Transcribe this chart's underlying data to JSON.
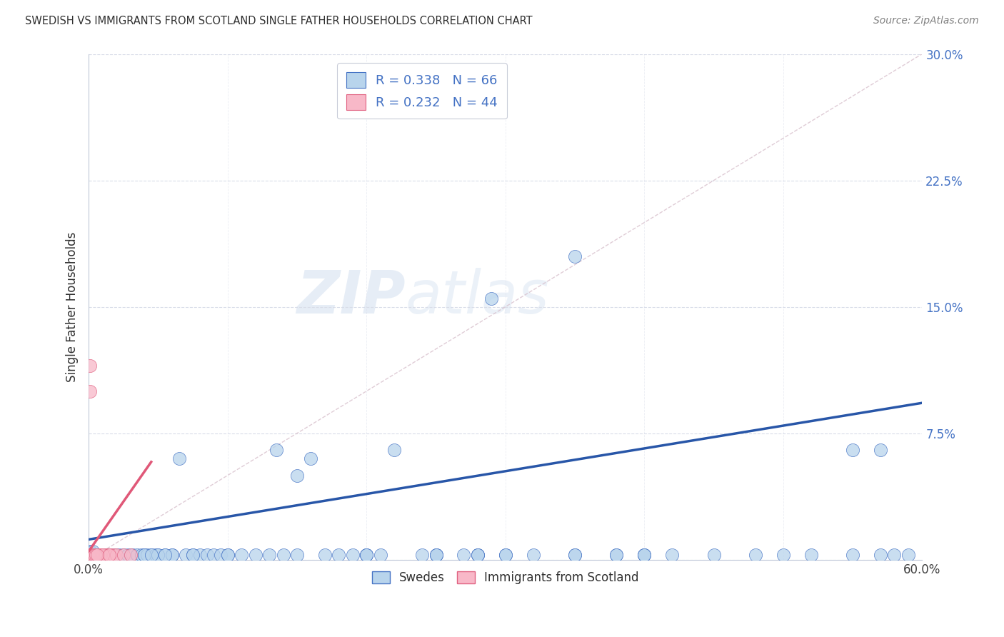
{
  "title": "SWEDISH VS IMMIGRANTS FROM SCOTLAND SINGLE FATHER HOUSEHOLDS CORRELATION CHART",
  "source": "Source: ZipAtlas.com",
  "ylabel": "Single Father Households",
  "watermark_zip": "ZIP",
  "watermark_atlas": "atlas",
  "blue_R": 0.338,
  "blue_N": 66,
  "pink_R": 0.232,
  "pink_N": 44,
  "xlim": [
    0.0,
    0.6
  ],
  "ylim": [
    0.0,
    0.3
  ],
  "blue_scatter_color": "#b8d4ec",
  "blue_scatter_edge": "#4472c4",
  "pink_scatter_color": "#f8b8c8",
  "pink_scatter_edge": "#e06080",
  "blue_line_color": "#2856a8",
  "pink_line_color": "#e05878",
  "diag_line_color": "#d8c0cc",
  "grid_color": "#d8dce8",
  "title_color": "#303030",
  "source_color": "#808080",
  "ytick_color": "#4472c4",
  "xtick_color": "#404040",
  "legend_edge_color": "#c8ccd8",
  "blue_trend_x0": 0.0,
  "blue_trend_y0": 0.012,
  "blue_trend_x1": 0.6,
  "blue_trend_y1": 0.093,
  "pink_trend_x0": 0.0,
  "pink_trend_y0": 0.005,
  "pink_trend_x1": 0.045,
  "pink_trend_y1": 0.058,
  "swedes_x": [
    0.001,
    0.002,
    0.003,
    0.004,
    0.005,
    0.006,
    0.007,
    0.008,
    0.009,
    0.01,
    0.011,
    0.012,
    0.013,
    0.014,
    0.015,
    0.016,
    0.018,
    0.02,
    0.022,
    0.025,
    0.028,
    0.03,
    0.032,
    0.035,
    0.038,
    0.04,
    0.042,
    0.045,
    0.048,
    0.05,
    0.055,
    0.06,
    0.065,
    0.07,
    0.075,
    0.08,
    0.085,
    0.09,
    0.095,
    0.1,
    0.11,
    0.12,
    0.13,
    0.135,
    0.14,
    0.15,
    0.16,
    0.17,
    0.18,
    0.19,
    0.2,
    0.21,
    0.22,
    0.24,
    0.25,
    0.27,
    0.28,
    0.3,
    0.32,
    0.35,
    0.38,
    0.4,
    0.55,
    0.57,
    0.29,
    0.35
  ],
  "swedes_y": [
    0.005,
    0.003,
    0.005,
    0.003,
    0.003,
    0.003,
    0.003,
    0.003,
    0.003,
    0.003,
    0.003,
    0.003,
    0.003,
    0.003,
    0.003,
    0.003,
    0.003,
    0.003,
    0.003,
    0.003,
    0.003,
    0.003,
    0.003,
    0.003,
    0.003,
    0.003,
    0.003,
    0.003,
    0.003,
    0.003,
    0.003,
    0.003,
    0.06,
    0.003,
    0.003,
    0.003,
    0.003,
    0.003,
    0.003,
    0.003,
    0.003,
    0.003,
    0.003,
    0.065,
    0.003,
    0.05,
    0.06,
    0.003,
    0.003,
    0.003,
    0.003,
    0.003,
    0.065,
    0.003,
    0.003,
    0.003,
    0.003,
    0.003,
    0.003,
    0.003,
    0.003,
    0.003,
    0.065,
    0.065,
    0.155,
    0.18
  ],
  "swedes_x2": [
    0.001,
    0.002,
    0.003,
    0.004,
    0.005,
    0.007,
    0.009,
    0.012,
    0.04,
    0.05,
    0.06,
    0.055,
    0.045,
    0.1,
    0.075,
    0.15,
    0.2,
    0.25,
    0.3,
    0.2,
    0.25,
    0.28,
    0.35,
    0.38,
    0.4,
    0.42,
    0.45,
    0.48,
    0.5,
    0.52,
    0.55,
    0.57,
    0.58,
    0.59,
    0.4,
    0.28
  ],
  "swedes_y2": [
    0.003,
    0.003,
    0.003,
    0.003,
    0.003,
    0.003,
    0.003,
    0.003,
    0.003,
    0.003,
    0.003,
    0.003,
    0.003,
    0.003,
    0.003,
    0.003,
    0.003,
    0.003,
    0.003,
    0.003,
    0.003,
    0.003,
    0.003,
    0.003,
    0.003,
    0.003,
    0.003,
    0.003,
    0.003,
    0.003,
    0.003,
    0.003,
    0.003,
    0.003,
    0.003,
    0.003
  ],
  "scotland_x": [
    0.001,
    0.001,
    0.001,
    0.001,
    0.001,
    0.001,
    0.001,
    0.001,
    0.002,
    0.002,
    0.002,
    0.003,
    0.003,
    0.004,
    0.004,
    0.005,
    0.006,
    0.007,
    0.008,
    0.009,
    0.01,
    0.011,
    0.012,
    0.013,
    0.014,
    0.015,
    0.016,
    0.018,
    0.02,
    0.003,
    0.005,
    0.008,
    0.01,
    0.015,
    0.025,
    0.03,
    0.001,
    0.001,
    0.002,
    0.002,
    0.003,
    0.004,
    0.005,
    0.006
  ],
  "scotland_y": [
    0.003,
    0.003,
    0.003,
    0.003,
    0.003,
    0.003,
    0.003,
    0.003,
    0.003,
    0.003,
    0.003,
    0.003,
    0.003,
    0.003,
    0.003,
    0.003,
    0.003,
    0.003,
    0.003,
    0.003,
    0.003,
    0.003,
    0.003,
    0.003,
    0.003,
    0.003,
    0.003,
    0.003,
    0.003,
    0.003,
    0.003,
    0.003,
    0.003,
    0.003,
    0.003,
    0.003,
    0.1,
    0.115,
    0.003,
    0.003,
    0.003,
    0.003,
    0.003,
    0.003
  ]
}
